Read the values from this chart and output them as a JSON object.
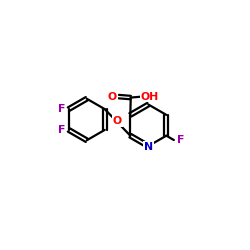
{
  "background_color": "#ffffff",
  "atom_color_N": "#0000cc",
  "atom_color_O": "#ff0000",
  "atom_color_F": "#9900aa",
  "bond_color": "#000000",
  "bond_width": 1.6,
  "figsize": [
    2.5,
    2.5
  ],
  "dpi": 100,
  "xlim": [
    0,
    10
  ],
  "ylim": [
    0,
    10
  ],
  "font_size": 7.8
}
